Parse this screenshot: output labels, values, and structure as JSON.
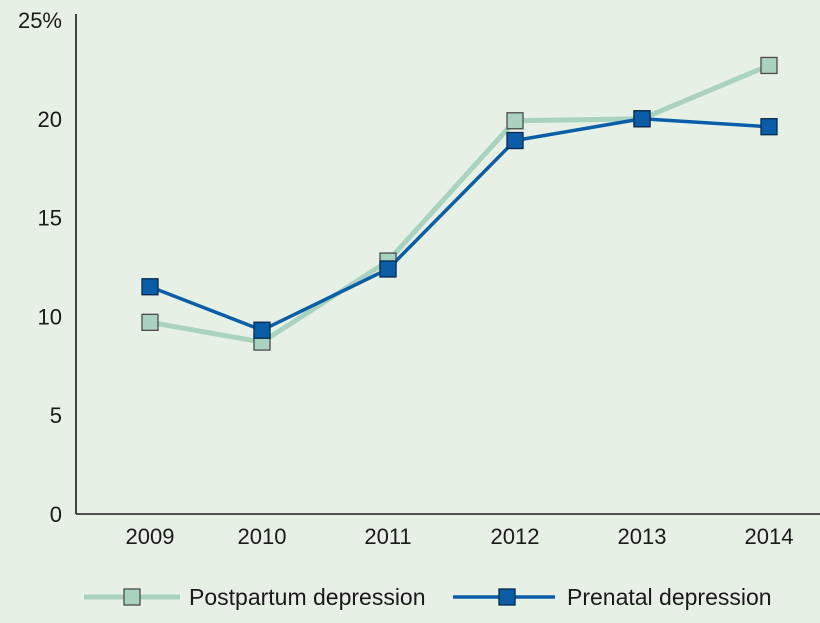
{
  "chart_data": {
    "type": "line",
    "title": "",
    "xlabel": "",
    "ylabel": "",
    "categories": [
      "2009",
      "2010",
      "2011",
      "2012",
      "2013",
      "2014"
    ],
    "y_ticks": [
      "0",
      "5",
      "10",
      "15",
      "20",
      "25%"
    ],
    "ylim": [
      0,
      25
    ],
    "grid": false,
    "legend_position": "bottom",
    "series": [
      {
        "name": "Postpartum depression",
        "values": [
          9.7,
          8.7,
          12.8,
          19.9,
          20.0,
          22.7
        ],
        "color": "#a9d2bf",
        "marker": "square"
      },
      {
        "name": "Prenatal depression",
        "values": [
          11.5,
          9.3,
          12.4,
          18.9,
          20.0,
          19.6
        ],
        "color": "#0a5ea8",
        "marker": "square"
      }
    ]
  }
}
